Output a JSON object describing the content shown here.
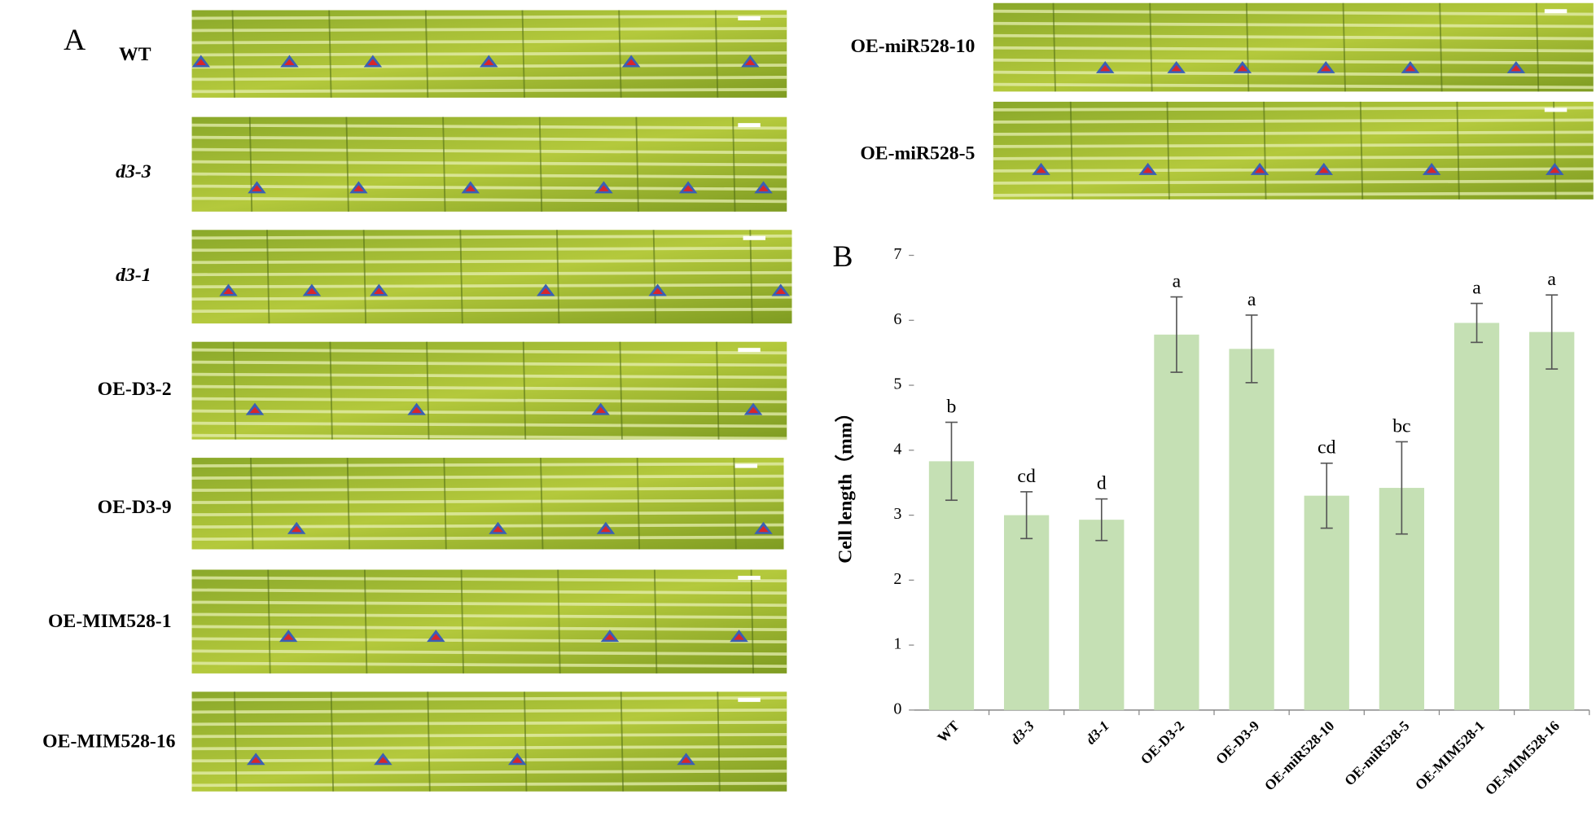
{
  "panel_a": {
    "label": "A",
    "images": [
      {
        "label": "WT"
      },
      {
        "label": "d3-3"
      },
      {
        "label": "d3-1"
      },
      {
        "label": "OE-D3-2"
      },
      {
        "label": "OE-D3-9"
      },
      {
        "label": "OE-MIM528-1"
      },
      {
        "label": "OE-MIM528-16"
      },
      {
        "label": "OE-miR528-10"
      },
      {
        "label": "OE-miR528-5"
      }
    ]
  },
  "chart_data": {
    "type": "bar",
    "panel_label": "B",
    "y_label": "Cell length（mm）",
    "categories": [
      "WT",
      "d3-3",
      "d3-1",
      "OE-D3-2",
      "OE-D3-9",
      "OE-miR528-10",
      "OE-miR528-5",
      "OE-MIM528-1",
      "OE-MIM528-16"
    ],
    "series": [
      {
        "color": "#c5e0b4",
        "values": [
          3.83,
          3.0,
          2.93,
          5.78,
          5.56,
          3.3,
          3.42,
          5.96,
          5.82
        ],
        "errors": [
          0.6,
          0.36,
          0.32,
          0.58,
          0.52,
          0.5,
          0.71,
          0.3,
          0.57
        ],
        "annotations": [
          "b",
          "cd",
          "d",
          "a",
          "a",
          "cd",
          "bc",
          "a",
          "a"
        ]
      }
    ],
    "ylim": [
      0,
      7
    ],
    "yticks": [
      0,
      1,
      2,
      3,
      4,
      5,
      6,
      7
    ]
  }
}
